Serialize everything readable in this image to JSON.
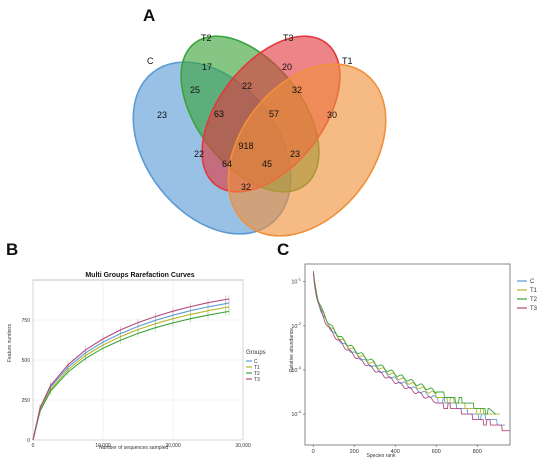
{
  "panels": {
    "a": "A",
    "b": "B",
    "c": "C"
  },
  "venn": {
    "sets": [
      {
        "label": "C",
        "color": "#5b9bd5"
      },
      {
        "label": "T2",
        "color": "#3aa33a"
      },
      {
        "label": "T3",
        "color": "#e0393f"
      },
      {
        "label": "T1",
        "color": "#f0903a"
      }
    ],
    "regions": [
      {
        "value": "23"
      },
      {
        "value": "17"
      },
      {
        "value": "20"
      },
      {
        "value": "30"
      },
      {
        "value": "25"
      },
      {
        "value": "22"
      },
      {
        "value": "32"
      },
      {
        "value": "63"
      },
      {
        "value": "57"
      },
      {
        "value": "22"
      },
      {
        "value": "918"
      },
      {
        "value": "23"
      },
      {
        "value": "64"
      },
      {
        "value": "45"
      },
      {
        "value": "32"
      }
    ]
  },
  "chart_data": [
    {
      "type": "line",
      "title": "Multi Groups Rarefaction Curves",
      "xlabel": "Number of sequences sampled",
      "ylabel": "Feature numbers",
      "xlim": [
        0,
        30000
      ],
      "ylim": [
        0,
        1000
      ],
      "xticks": [
        0,
        10000,
        20000,
        30000
      ],
      "xtick_labels": [
        "0",
        "10,000",
        "20,000",
        "30,000"
      ],
      "yticks": [
        0,
        250,
        500,
        750
      ],
      "legend_title": "Groups",
      "legend_labels": [
        "C",
        "T1",
        "T2",
        "T3"
      ],
      "legend_position": "right",
      "grid": true,
      "x": [
        0,
        1000,
        2500,
        5000,
        7500,
        10000,
        12500,
        15000,
        17500,
        20000,
        22500,
        25000,
        27500,
        28000
      ],
      "series": [
        {
          "name": "C",
          "color": "#5b9bd5",
          "values": [
            0,
            195,
            330,
            455,
            545,
            612,
            665,
            710,
            748,
            780,
            808,
            832,
            852,
            856
          ]
        },
        {
          "name": "T1",
          "color": "#b5b52a",
          "values": [
            0,
            185,
            315,
            440,
            528,
            594,
            646,
            690,
            727,
            758,
            785,
            808,
            828,
            832
          ]
        },
        {
          "name": "T2",
          "color": "#3aa33a",
          "values": [
            0,
            180,
            305,
            425,
            510,
            574,
            624,
            666,
            702,
            732,
            758,
            780,
            800,
            804
          ]
        },
        {
          "name": "T3",
          "color": "#b24a7e",
          "values": [
            0,
            200,
            340,
            470,
            563,
            632,
            688,
            734,
            772,
            805,
            834,
            858,
            878,
            882
          ]
        }
      ]
    },
    {
      "type": "line",
      "title": "",
      "xlabel": "Species rank",
      "ylabel": "Relative abundance",
      "log_y": true,
      "xlim": [
        -40,
        960
      ],
      "ylim_exponent": [
        -4.7,
        -0.6
      ],
      "xticks": [
        0,
        200,
        400,
        600,
        800
      ],
      "ytick_exponents": [
        -1,
        -2,
        -3,
        -4
      ],
      "ytick_base": "10",
      "legend_labels": [
        "C",
        "T1",
        "T2",
        "T3"
      ],
      "legend_position": "right",
      "grid": false,
      "series": [
        {
          "name": "C",
          "color": "#5b9bd5",
          "end_rank": 905,
          "scale": 1.0
        },
        {
          "name": "T1",
          "color": "#b5b52a",
          "end_rank": 880,
          "scale": 0.93
        },
        {
          "name": "T2",
          "color": "#3aa33a",
          "end_rank": 860,
          "scale": 0.88
        },
        {
          "name": "T3",
          "color": "#b24a7e",
          "end_rank": 930,
          "scale": 1.06
        }
      ]
    }
  ]
}
